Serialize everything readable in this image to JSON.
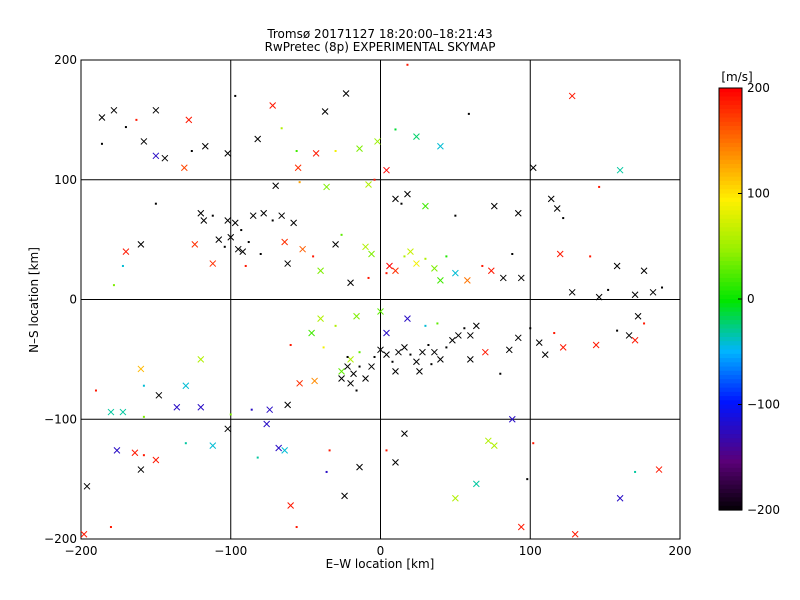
{
  "chart_data": {
    "type": "scatter",
    "title": "Tromsø 20171127 18:20:00–18:21:43",
    "subtitle": "RwPretec (8p) EXPERIMENTAL SKYMAP",
    "xlabel": "E–W location [km]",
    "ylabel": "N–S location [km]",
    "xlim": [
      -200,
      200
    ],
    "ylim": [
      -200,
      200
    ],
    "xticks": [
      -200,
      -100,
      0,
      100,
      200
    ],
    "yticks": [
      -200,
      -100,
      0,
      100,
      200
    ],
    "grid": true,
    "colorbar": {
      "label": "[m/s]",
      "min": -200,
      "max": 200,
      "ticks": [
        -200,
        -100,
        0,
        100,
        200
      ]
    },
    "points": [
      {
        "x": -186,
        "y": 152,
        "v": -200
      },
      {
        "x": -178,
        "y": 158,
        "v": -200
      },
      {
        "x": -170,
        "y": 144,
        "v": -200
      },
      {
        "x": -150,
        "y": 158,
        "v": -200
      },
      {
        "x": -144,
        "y": 118,
        "v": -200
      },
      {
        "x": -163,
        "y": 150,
        "v": 190
      },
      {
        "x": -128,
        "y": 150,
        "v": 190
      },
      {
        "x": -150,
        "y": 120,
        "v": -120
      },
      {
        "x": -126,
        "y": 124,
        "v": -200
      },
      {
        "x": -117,
        "y": 128,
        "v": -200
      },
      {
        "x": -102,
        "y": 122,
        "v": -200
      },
      {
        "x": -186,
        "y": 130,
        "v": -200
      },
      {
        "x": -131,
        "y": 110,
        "v": 170
      },
      {
        "x": -158,
        "y": 132,
        "v": -200
      },
      {
        "x": -97,
        "y": 170,
        "v": -200
      },
      {
        "x": -72,
        "y": 162,
        "v": 190
      },
      {
        "x": -82,
        "y": 134,
        "v": -200
      },
      {
        "x": -66,
        "y": 143,
        "v": 60
      },
      {
        "x": -37,
        "y": 157,
        "v": -200
      },
      {
        "x": -23,
        "y": 172,
        "v": -200
      },
      {
        "x": -56,
        "y": 124,
        "v": 20
      },
      {
        "x": -43,
        "y": 122,
        "v": 190
      },
      {
        "x": -55,
        "y": 110,
        "v": 180
      },
      {
        "x": -30,
        "y": 124,
        "v": 90
      },
      {
        "x": -14,
        "y": 126,
        "v": 40
      },
      {
        "x": -2,
        "y": 132,
        "v": 50
      },
      {
        "x": 10,
        "y": 142,
        "v": -10
      },
      {
        "x": 24,
        "y": 136,
        "v": -20
      },
      {
        "x": 40,
        "y": 128,
        "v": -40
      },
      {
        "x": 59,
        "y": 155,
        "v": -200
      },
      {
        "x": 102,
        "y": 110,
        "v": -200
      },
      {
        "x": 128,
        "y": 170,
        "v": 190
      },
      {
        "x": 146,
        "y": 94,
        "v": 190
      },
      {
        "x": 160,
        "y": 108,
        "v": -30
      },
      {
        "x": 114,
        "y": 84,
        "v": -200
      },
      {
        "x": 122,
        "y": 68,
        "v": -200
      },
      {
        "x": 118,
        "y": 76,
        "v": -200
      },
      {
        "x": -70,
        "y": 95,
        "v": -200
      },
      {
        "x": -54,
        "y": 98,
        "v": 130
      },
      {
        "x": -36,
        "y": 94,
        "v": 40
      },
      {
        "x": -8,
        "y": 96,
        "v": 60
      },
      {
        "x": -4,
        "y": 100,
        "v": 190
      },
      {
        "x": 4,
        "y": 108,
        "v": 200
      },
      {
        "x": 10,
        "y": 84,
        "v": -200
      },
      {
        "x": 14,
        "y": 80,
        "v": -200
      },
      {
        "x": 18,
        "y": 88,
        "v": -200
      },
      {
        "x": 30,
        "y": 78,
        "v": 20
      },
      {
        "x": 50,
        "y": 70,
        "v": -200
      },
      {
        "x": 76,
        "y": 78,
        "v": -200
      },
      {
        "x": 92,
        "y": 72,
        "v": -200
      },
      {
        "x": -150,
        "y": 80,
        "v": -200
      },
      {
        "x": -120,
        "y": 72,
        "v": -200
      },
      {
        "x": -118,
        "y": 66,
        "v": -200
      },
      {
        "x": -112,
        "y": 70,
        "v": -200
      },
      {
        "x": -102,
        "y": 66,
        "v": -200
      },
      {
        "x": -97,
        "y": 64,
        "v": -200
      },
      {
        "x": -93,
        "y": 58,
        "v": -200
      },
      {
        "x": -100,
        "y": 52,
        "v": -200
      },
      {
        "x": -108,
        "y": 50,
        "v": -200
      },
      {
        "x": -104,
        "y": 44,
        "v": -200
      },
      {
        "x": -95,
        "y": 42,
        "v": -200
      },
      {
        "x": -92,
        "y": 40,
        "v": -200
      },
      {
        "x": -88,
        "y": 48,
        "v": -200
      },
      {
        "x": -85,
        "y": 70,
        "v": -200
      },
      {
        "x": -78,
        "y": 72,
        "v": -200
      },
      {
        "x": -72,
        "y": 66,
        "v": -200
      },
      {
        "x": -66,
        "y": 70,
        "v": -200
      },
      {
        "x": -58,
        "y": 64,
        "v": -200
      },
      {
        "x": -80,
        "y": 38,
        "v": -200
      },
      {
        "x": -64,
        "y": 48,
        "v": 180
      },
      {
        "x": -52,
        "y": 42,
        "v": 160
      },
      {
        "x": -45,
        "y": 36,
        "v": 190
      },
      {
        "x": -40,
        "y": 24,
        "v": 40
      },
      {
        "x": -30,
        "y": 46,
        "v": -200
      },
      {
        "x": -26,
        "y": 54,
        "v": 30
      },
      {
        "x": -10,
        "y": 44,
        "v": 60
      },
      {
        "x": -6,
        "y": 38,
        "v": 40
      },
      {
        "x": 4,
        "y": 22,
        "v": 190
      },
      {
        "x": 6,
        "y": 28,
        "v": 200
      },
      {
        "x": 10,
        "y": 24,
        "v": 180
      },
      {
        "x": 16,
        "y": 36,
        "v": 60
      },
      {
        "x": 20,
        "y": 40,
        "v": 70
      },
      {
        "x": 24,
        "y": 30,
        "v": 90
      },
      {
        "x": 30,
        "y": 34,
        "v": 60
      },
      {
        "x": 36,
        "y": 26,
        "v": 40
      },
      {
        "x": 40,
        "y": 16,
        "v": 20
      },
      {
        "x": 44,
        "y": 36,
        "v": 10
      },
      {
        "x": 50,
        "y": 22,
        "v": -40
      },
      {
        "x": 58,
        "y": 16,
        "v": 150
      },
      {
        "x": 68,
        "y": 28,
        "v": 190
      },
      {
        "x": 74,
        "y": 24,
        "v": 190
      },
      {
        "x": 82,
        "y": 18,
        "v": -200
      },
      {
        "x": 88,
        "y": 38,
        "v": -200
      },
      {
        "x": 94,
        "y": 18,
        "v": -200
      },
      {
        "x": 120,
        "y": 38,
        "v": 190
      },
      {
        "x": 140,
        "y": 36,
        "v": 190
      },
      {
        "x": 158,
        "y": 28,
        "v": -200
      },
      {
        "x": 176,
        "y": 24,
        "v": -200
      },
      {
        "x": -178,
        "y": 12,
        "v": 40
      },
      {
        "x": -170,
        "y": 40,
        "v": 190
      },
      {
        "x": -160,
        "y": 46,
        "v": -200
      },
      {
        "x": -172,
        "y": 28,
        "v": -40
      },
      {
        "x": -124,
        "y": 46,
        "v": 180
      },
      {
        "x": -112,
        "y": 30,
        "v": 180
      },
      {
        "x": -90,
        "y": 28,
        "v": 190
      },
      {
        "x": -62,
        "y": 30,
        "v": -200
      },
      {
        "x": -20,
        "y": 14,
        "v": -200
      },
      {
        "x": -8,
        "y": 18,
        "v": 190
      },
      {
        "x": 128,
        "y": 6,
        "v": -200
      },
      {
        "x": 146,
        "y": 2,
        "v": -200
      },
      {
        "x": 152,
        "y": 8,
        "v": -200
      },
      {
        "x": 170,
        "y": 4,
        "v": -200
      },
      {
        "x": 182,
        "y": 6,
        "v": -200
      },
      {
        "x": 188,
        "y": 10,
        "v": -200
      },
      {
        "x": -120,
        "y": -50,
        "v": 60
      },
      {
        "x": -160,
        "y": -58,
        "v": 120
      },
      {
        "x": -158,
        "y": -72,
        "v": -40
      },
      {
        "x": -148,
        "y": -80,
        "v": -200
      },
      {
        "x": -130,
        "y": -72,
        "v": -40
      },
      {
        "x": -190,
        "y": -76,
        "v": 190
      },
      {
        "x": -180,
        "y": -94,
        "v": -30
      },
      {
        "x": -172,
        "y": -94,
        "v": -30
      },
      {
        "x": -158,
        "y": -98,
        "v": 40
      },
      {
        "x": -136,
        "y": -90,
        "v": -120
      },
      {
        "x": -120,
        "y": -90,
        "v": -120
      },
      {
        "x": -100,
        "y": -96,
        "v": 40
      },
      {
        "x": -102,
        "y": -108,
        "v": -200
      },
      {
        "x": -112,
        "y": -122,
        "v": -40
      },
      {
        "x": -130,
        "y": -120,
        "v": -30
      },
      {
        "x": -164,
        "y": -128,
        "v": 190
      },
      {
        "x": -176,
        "y": -126,
        "v": -120
      },
      {
        "x": -158,
        "y": -130,
        "v": 190
      },
      {
        "x": -150,
        "y": -134,
        "v": 190
      },
      {
        "x": -196,
        "y": -156,
        "v": -200
      },
      {
        "x": -180,
        "y": -190,
        "v": 190
      },
      {
        "x": -198,
        "y": -196,
        "v": 190
      },
      {
        "x": -160,
        "y": -142,
        "v": -200
      },
      {
        "x": -60,
        "y": -38,
        "v": 190
      },
      {
        "x": -54,
        "y": -70,
        "v": 180
      },
      {
        "x": -44,
        "y": -68,
        "v": 140
      },
      {
        "x": -38,
        "y": -40,
        "v": 90
      },
      {
        "x": -62,
        "y": -88,
        "v": -200
      },
      {
        "x": -74,
        "y": -92,
        "v": -120
      },
      {
        "x": -86,
        "y": -92,
        "v": -120
      },
      {
        "x": -76,
        "y": -104,
        "v": -120
      },
      {
        "x": -68,
        "y": -124,
        "v": -120
      },
      {
        "x": -82,
        "y": -132,
        "v": -30
      },
      {
        "x": -64,
        "y": -126,
        "v": -40
      },
      {
        "x": -60,
        "y": -172,
        "v": 190
      },
      {
        "x": -56,
        "y": -190,
        "v": 190
      },
      {
        "x": -26,
        "y": -60,
        "v": 30
      },
      {
        "x": -20,
        "y": -50,
        "v": 60
      },
      {
        "x": -14,
        "y": -44,
        "v": 30
      },
      {
        "x": -10,
        "y": -66,
        "v": -200
      },
      {
        "x": -6,
        "y": -56,
        "v": -200
      },
      {
        "x": -4,
        "y": -48,
        "v": -200
      },
      {
        "x": 0,
        "y": -42,
        "v": -200
      },
      {
        "x": 4,
        "y": -46,
        "v": -200
      },
      {
        "x": 8,
        "y": -52,
        "v": -200
      },
      {
        "x": 12,
        "y": -44,
        "v": -200
      },
      {
        "x": 16,
        "y": -40,
        "v": -200
      },
      {
        "x": 20,
        "y": -46,
        "v": -200
      },
      {
        "x": 24,
        "y": -52,
        "v": -200
      },
      {
        "x": 28,
        "y": -44,
        "v": -200
      },
      {
        "x": 32,
        "y": -38,
        "v": -200
      },
      {
        "x": 36,
        "y": -44,
        "v": -200
      },
      {
        "x": 40,
        "y": -50,
        "v": -200
      },
      {
        "x": 44,
        "y": -40,
        "v": -200
      },
      {
        "x": 48,
        "y": -34,
        "v": -200
      },
      {
        "x": 52,
        "y": -30,
        "v": -200
      },
      {
        "x": 56,
        "y": -24,
        "v": -200
      },
      {
        "x": 60,
        "y": -30,
        "v": -200
      },
      {
        "x": 64,
        "y": -22,
        "v": -200
      },
      {
        "x": -14,
        "y": -56,
        "v": -200
      },
      {
        "x": -18,
        "y": -62,
        "v": -200
      },
      {
        "x": -20,
        "y": -70,
        "v": -200
      },
      {
        "x": -16,
        "y": -76,
        "v": -200
      },
      {
        "x": -22,
        "y": -56,
        "v": -200
      },
      {
        "x": -26,
        "y": -66,
        "v": -200
      },
      {
        "x": -22,
        "y": -48,
        "v": -200
      },
      {
        "x": 10,
        "y": -60,
        "v": -200
      },
      {
        "x": 26,
        "y": -60,
        "v": -200
      },
      {
        "x": 34,
        "y": -54,
        "v": -200
      },
      {
        "x": 4,
        "y": -28,
        "v": -120
      },
      {
        "x": 18,
        "y": -16,
        "v": -120
      },
      {
        "x": 30,
        "y": -22,
        "v": -40
      },
      {
        "x": 0,
        "y": -10,
        "v": 30
      },
      {
        "x": -16,
        "y": -14,
        "v": 40
      },
      {
        "x": -30,
        "y": -22,
        "v": 60
      },
      {
        "x": -40,
        "y": -16,
        "v": 60
      },
      {
        "x": -46,
        "y": -28,
        "v": 20
      },
      {
        "x": 38,
        "y": -20,
        "v": 30
      },
      {
        "x": 60,
        "y": -50,
        "v": -200
      },
      {
        "x": 70,
        "y": -44,
        "v": 190
      },
      {
        "x": 80,
        "y": -62,
        "v": -200
      },
      {
        "x": 86,
        "y": -42,
        "v": -200
      },
      {
        "x": 92,
        "y": -32,
        "v": -200
      },
      {
        "x": 100,
        "y": -24,
        "v": -200
      },
      {
        "x": 106,
        "y": -36,
        "v": -200
      },
      {
        "x": 110,
        "y": -46,
        "v": -200
      },
      {
        "x": 116,
        "y": -28,
        "v": 190
      },
      {
        "x": 122,
        "y": -40,
        "v": 190
      },
      {
        "x": 144,
        "y": -38,
        "v": 190
      },
      {
        "x": 158,
        "y": -26,
        "v": -200
      },
      {
        "x": 166,
        "y": -30,
        "v": -200
      },
      {
        "x": 172,
        "y": -14,
        "v": -200
      },
      {
        "x": 176,
        "y": -20,
        "v": 190
      },
      {
        "x": 170,
        "y": -34,
        "v": 190
      },
      {
        "x": 88,
        "y": -100,
        "v": -120
      },
      {
        "x": 102,
        "y": -120,
        "v": 190
      },
      {
        "x": 72,
        "y": -118,
        "v": 60
      },
      {
        "x": 76,
        "y": -122,
        "v": 60
      },
      {
        "x": 98,
        "y": -150,
        "v": -200
      },
      {
        "x": 94,
        "y": -190,
        "v": 190
      },
      {
        "x": 160,
        "y": -166,
        "v": -120
      },
      {
        "x": 170,
        "y": -144,
        "v": -30
      },
      {
        "x": 186,
        "y": -142,
        "v": 190
      },
      {
        "x": 130,
        "y": -196,
        "v": 190
      },
      {
        "x": 4,
        "y": -126,
        "v": 190
      },
      {
        "x": 10,
        "y": -136,
        "v": -200
      },
      {
        "x": 16,
        "y": -112,
        "v": -200
      },
      {
        "x": -34,
        "y": -126,
        "v": 190
      },
      {
        "x": -24,
        "y": -164,
        "v": -200
      },
      {
        "x": -14,
        "y": -140,
        "v": -200
      },
      {
        "x": -36,
        "y": -144,
        "v": -120
      },
      {
        "x": 50,
        "y": -166,
        "v": 60
      },
      {
        "x": 64,
        "y": -154,
        "v": -30
      },
      {
        "x": 18,
        "y": 196,
        "v": 190
      }
    ]
  }
}
